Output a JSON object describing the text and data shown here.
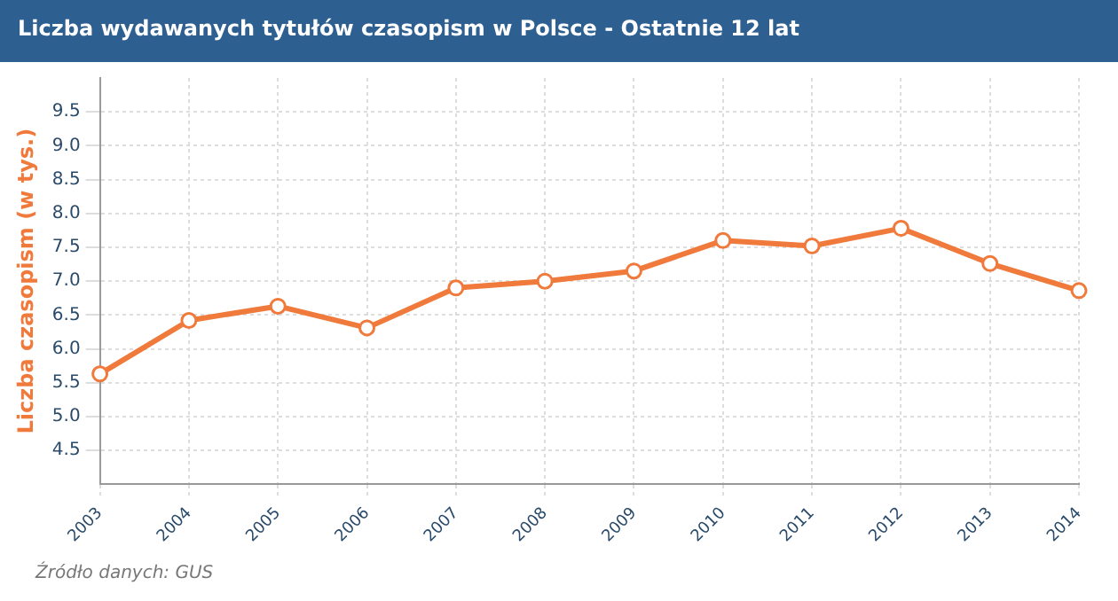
{
  "chart_data": {
    "type": "line",
    "title": "Liczba wydawanych tytułów czasopism w Polsce - Ostatnie 12 lat",
    "ylabel": "Liczba czasopism (w tys.)",
    "categories": [
      "2003",
      "2004",
      "2005",
      "2006",
      "2007",
      "2008",
      "2009",
      "2010",
      "2011",
      "2012",
      "2013",
      "2014"
    ],
    "series": [
      {
        "color": "#f07a3c",
        "values": [
          5.63,
          6.42,
          6.63,
          6.31,
          6.9,
          7.0,
          7.15,
          7.6,
          7.52,
          7.78,
          7.26,
          6.86
        ]
      }
    ],
    "ylim": [
      4,
      10
    ],
    "yticks": [
      4.5,
      {
        "value": 5,
        "label": "5.0"
      },
      5.5,
      {
        "value": 6,
        "label": "6.0"
      },
      6.5,
      {
        "value": 7,
        "label": "7.0"
      },
      7.5,
      {
        "value": 8,
        "label": "8.0"
      },
      8.5,
      {
        "value": 9,
        "label": "9.0"
      },
      9.5
    ],
    "grid": true,
    "legend": false,
    "marker": "circle",
    "line_style": "solid",
    "annotations": [
      "Źródło danych: GUS"
    ]
  }
}
